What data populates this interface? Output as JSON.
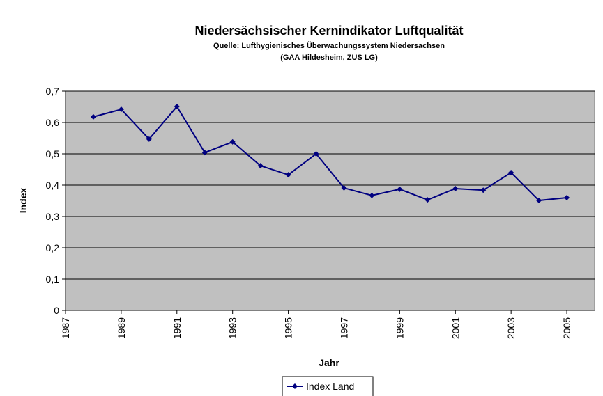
{
  "chart_data": {
    "type": "line",
    "title": "Niedersächsischer Kernindikator Luftqualität",
    "subtitle": [
      "Quelle: Lufthygienisches Überwachungssystem Niedersachsen",
      "(GAA Hildesheim, ZUS LG)"
    ],
    "x_label": "Jahr",
    "y_label": "Index",
    "x": [
      1988,
      1989,
      1990,
      1991,
      1992,
      1993,
      1994,
      1995,
      1996,
      1997,
      1998,
      1999,
      2000,
      2001,
      2002,
      2003,
      2004,
      2005
    ],
    "series": [
      {
        "name": "Index Land",
        "color": "#000080",
        "values": [
          0.618,
          0.642,
          0.547,
          0.651,
          0.504,
          0.538,
          0.462,
          0.433,
          0.5,
          0.391,
          0.367,
          0.387,
          0.353,
          0.389,
          0.384,
          0.44,
          0.351,
          0.36
        ]
      }
    ],
    "xlim": [
      1987,
      2006
    ],
    "xticks": [
      1987,
      1989,
      1991,
      1993,
      1995,
      1997,
      1999,
      2001,
      2003,
      2005
    ],
    "ylim": [
      0,
      0.7
    ],
    "yticks": [
      0,
      {
        "value": 0.1,
        "label": "0,1"
      },
      {
        "value": 0.2,
        "label": "0,2"
      },
      {
        "value": 0.3,
        "label": "0,3"
      },
      {
        "value": 0.4,
        "label": "0,4"
      },
      {
        "value": 0.5,
        "label": "0,5"
      },
      {
        "value": 0.6,
        "label": "0,6"
      },
      {
        "value": 0.7,
        "label": "0,7"
      }
    ],
    "grid": true,
    "plot_background": "#c0c0c0",
    "legend": "bottom"
  }
}
